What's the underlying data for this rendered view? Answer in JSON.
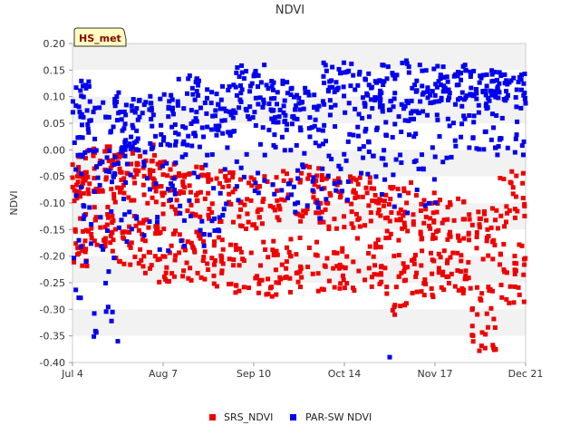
{
  "chart_data": {
    "type": "scatter",
    "title": "NDVI",
    "ylabel": "NDVI",
    "xlabel": "",
    "badge": "HS_met",
    "ylim": [
      -0.4,
      0.2
    ],
    "yticks": [
      "0.20",
      "0.15",
      "0.10",
      "0.05",
      "0.00",
      "-0.05",
      "-0.10",
      "-0.15",
      "-0.20",
      "-0.25",
      "-0.30",
      "-0.35",
      "-0.40"
    ],
    "xlim": [
      "Jul 4",
      "Dec 21"
    ],
    "xticks": [
      "Jul 4",
      "Aug 7",
      "Sep 10",
      "Oct 14",
      "Nov 17",
      "Dec 21"
    ],
    "grid": "horizontal bands",
    "legend_position": "bottom",
    "series": [
      {
        "name": "SRS_NDVI",
        "color": "#ee0000",
        "clusters": [
          {
            "x": [
              "Jul 4",
              "Jul 10"
            ],
            "y": [
              -0.22,
              0.0
            ]
          },
          {
            "x": [
              "Jul 10",
              "Jul 19"
            ],
            "y": [
              -0.2,
              0.01
            ]
          },
          {
            "x": [
              "Jul 19",
              "Jul 28"
            ],
            "y": [
              -0.22,
              0.0
            ]
          },
          {
            "x": [
              "Jul 28",
              "Aug 5"
            ],
            "y": [
              -0.24,
              0.01
            ]
          },
          {
            "x": [
              "Aug 5",
              "Aug 14"
            ],
            "y": [
              -0.25,
              -0.02
            ]
          },
          {
            "x": [
              "Aug 14",
              "Aug 23"
            ],
            "y": [
              -0.25,
              -0.03
            ]
          },
          {
            "x": [
              "Aug 23",
              "Sep 3"
            ],
            "y": [
              -0.26,
              -0.04
            ]
          },
          {
            "x": [
              "Sep 3",
              "Sep 14"
            ],
            "y": [
              -0.27,
              -0.05
            ]
          },
          {
            "x": [
              "Sep 14",
              "Sep 26"
            ],
            "y": [
              -0.28,
              -0.03
            ]
          },
          {
            "x": [
              "Sep 26",
              "Oct 7"
            ],
            "y": [
              -0.27,
              -0.03
            ]
          },
          {
            "x": [
              "Oct 7",
              "Oct 18"
            ],
            "y": [
              -0.28,
              -0.05
            ]
          },
          {
            "x": [
              "Oct 18",
              "Oct 29"
            ],
            "y": [
              -0.26,
              -0.05
            ]
          },
          {
            "x": [
              "Oct 29",
              "Nov 8"
            ],
            "y": [
              -0.31,
              -0.06
            ]
          },
          {
            "x": [
              "Nov 8",
              "Nov 19"
            ],
            "y": [
              -0.28,
              -0.08
            ]
          },
          {
            "x": [
              "Nov 19",
              "Nov 30"
            ],
            "y": [
              -0.27,
              -0.09
            ]
          },
          {
            "x": [
              "Nov 30",
              "Dec 10"
            ],
            "y": [
              -0.38,
              -0.1
            ]
          },
          {
            "x": [
              "Dec 10",
              "Dec 21"
            ],
            "y": [
              -0.29,
              -0.04
            ]
          }
        ]
      },
      {
        "name": "PAR-SW NDVI",
        "color": "#0000ee",
        "clusters": [
          {
            "x": [
              "Jul 4",
              "Jul 12"
            ],
            "y": [
              -0.28,
              0.13
            ]
          },
          {
            "x": [
              "Jul 12",
              "Jul 22"
            ],
            "y": [
              -0.36,
              0.11
            ]
          },
          {
            "x": [
              "Jul 22",
              "Aug 1"
            ],
            "y": [
              -0.2,
              0.1
            ]
          },
          {
            "x": [
              "Aug 1",
              "Aug 12"
            ],
            "y": [
              -0.2,
              0.11
            ]
          },
          {
            "x": [
              "Aug 12",
              "Aug 23"
            ],
            "y": [
              -0.2,
              0.14
            ]
          },
          {
            "x": [
              "Aug 23",
              "Sep 3"
            ],
            "y": [
              -0.16,
              0.13
            ]
          },
          {
            "x": [
              "Sep 3",
              "Sep 14"
            ],
            "y": [
              -0.12,
              0.16
            ]
          },
          {
            "x": [
              "Sep 14",
              "Sep 25"
            ],
            "y": [
              -0.1,
              0.13
            ]
          },
          {
            "x": [
              "Sep 25",
              "Oct 6"
            ],
            "y": [
              -0.13,
              0.12
            ]
          },
          {
            "x": [
              "Oct 6",
              "Oct 17"
            ],
            "y": [
              -0.1,
              0.17
            ]
          },
          {
            "x": [
              "Oct 17",
              "Oct 28"
            ],
            "y": [
              -0.06,
              0.15
            ]
          },
          {
            "x": [
              "Oct 28",
              "Nov 8"
            ],
            "y": [
              -0.12,
              0.17
            ]
          },
          {
            "x": [
              "Nov 8",
              "Nov 19"
            ],
            "y": [
              -0.11,
              0.16
            ]
          },
          {
            "x": [
              "Nov 19",
              "Nov 30"
            ],
            "y": [
              -0.03,
              0.16
            ]
          },
          {
            "x": [
              "Nov 30",
              "Dec 10"
            ],
            "y": [
              0.0,
              0.15
            ]
          },
          {
            "x": [
              "Dec 10",
              "Dec 21"
            ],
            "y": [
              -0.01,
              0.15
            ]
          }
        ],
        "outliers": [
          {
            "x": "Jul 21",
            "y": -0.36
          },
          {
            "x": "Jul 19",
            "y": -0.305
          },
          {
            "x": "Oct 31",
            "y": -0.39
          }
        ]
      }
    ]
  }
}
